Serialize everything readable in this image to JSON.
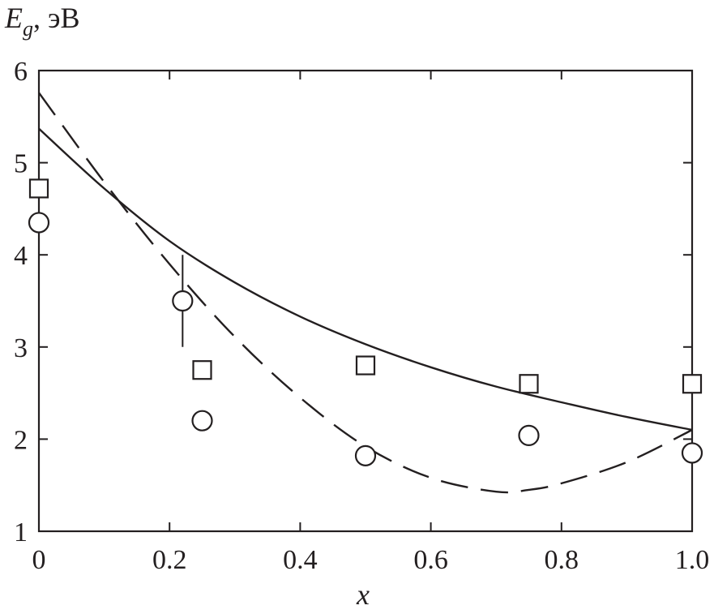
{
  "chart_data": {
    "type": "scatter",
    "ylabel_main": "E",
    "ylabel_sub": "g",
    "ylabel_unit": ", эВ",
    "xlabel": "x",
    "xlim": [
      0,
      1.0
    ],
    "ylim": [
      1,
      6
    ],
    "x_ticks": [
      "0",
      "0.2",
      "0.4",
      "0.6",
      "0.8",
      "1.0"
    ],
    "y_ticks": [
      "1",
      "2",
      "3",
      "4",
      "5",
      "6"
    ],
    "grid": false,
    "series": [
      {
        "style": "solid-line",
        "color": "#231f20",
        "x": [
          0,
          0.1,
          0.2,
          0.3,
          0.4,
          0.5,
          0.6,
          0.7,
          0.8,
          0.9,
          1.0
        ],
        "y": [
          5.37,
          4.72,
          4.15,
          3.7,
          3.33,
          3.03,
          2.78,
          2.57,
          2.4,
          2.24,
          2.1
        ]
      },
      {
        "style": "dashed-line",
        "color": "#231f20",
        "x": [
          0,
          0.1,
          0.2,
          0.3,
          0.4,
          0.5,
          0.6,
          0.7,
          0.75,
          0.8,
          0.9,
          1.0
        ],
        "y": [
          5.76,
          4.79,
          3.9,
          3.11,
          2.45,
          1.92,
          1.58,
          1.43,
          1.45,
          1.52,
          1.75,
          2.1
        ]
      },
      {
        "style": "squares",
        "color": "#231f20",
        "x": [
          0,
          0.25,
          0.5,
          0.75,
          1.0
        ],
        "y": [
          4.72,
          2.75,
          2.8,
          2.6,
          2.6
        ]
      },
      {
        "style": "circles",
        "color": "#231f20",
        "x": [
          0,
          0.22,
          0.25,
          0.5,
          0.75,
          1.0
        ],
        "y": [
          4.35,
          3.5,
          2.2,
          1.82,
          2.04,
          1.85
        ]
      }
    ],
    "error_bars": [
      {
        "x": 0.22,
        "y_low": 3.0,
        "y_high": 4.0
      }
    ]
  }
}
